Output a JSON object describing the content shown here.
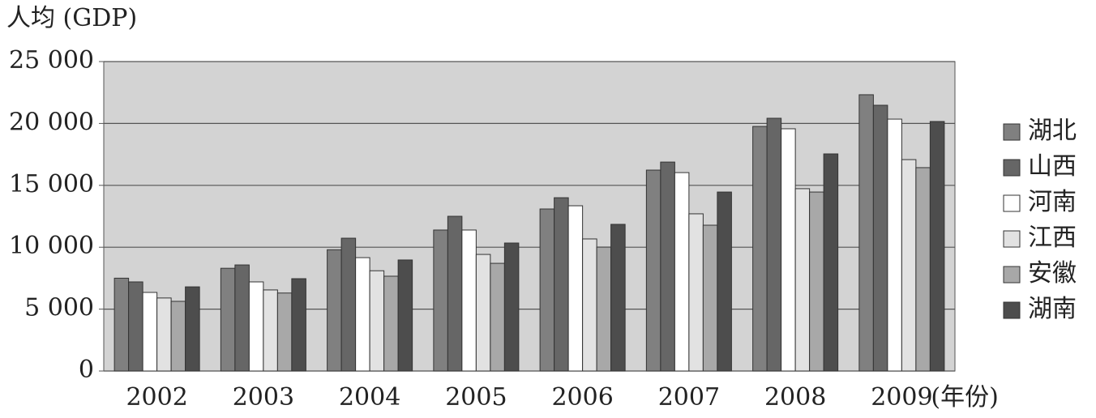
{
  "chart_data": {
    "type": "bar",
    "y_label": "人均 (GDP)",
    "x_label": "(年份)",
    "categories": [
      "2002",
      "2003",
      "2004",
      "2005",
      "2006",
      "2007",
      "2008",
      "2009"
    ],
    "series": [
      {
        "name": "湖北",
        "color": "#808080",
        "values": [
          7500,
          8300,
          9800,
          11390,
          13090,
          16230,
          19760,
          22320
        ]
      },
      {
        "name": "山西",
        "color": "#666666",
        "values": [
          7200,
          8570,
          10730,
          12500,
          14000,
          16880,
          20420,
          21470
        ]
      },
      {
        "name": "河南",
        "color": "#ffffff",
        "values": [
          6350,
          7200,
          9160,
          11390,
          13350,
          16030,
          19570,
          20350
        ]
      },
      {
        "name": "江西",
        "color": "#e2e2e2",
        "values": [
          5900,
          6550,
          8100,
          9420,
          10670,
          12700,
          14730,
          17080
        ]
      },
      {
        "name": "安徽",
        "color": "#a8a8a8",
        "values": [
          5630,
          6300,
          7660,
          8700,
          10010,
          11780,
          14460,
          16430
        ]
      },
      {
        "name": "湖南",
        "color": "#4d4d4d",
        "values": [
          6800,
          7460,
          8970,
          10340,
          11850,
          14460,
          17540,
          20160
        ]
      }
    ],
    "ylim": [
      0,
      25000
    ],
    "yticks": [
      0,
      {
        "value": 5000,
        "label": "5 000"
      },
      {
        "value": 10000,
        "label": "10 000"
      },
      {
        "value": 15000,
        "label": "15 000"
      },
      {
        "value": 20000,
        "label": "20 000"
      },
      {
        "value": 25000,
        "label": "25 000"
      }
    ],
    "grid": true,
    "legend": "right"
  }
}
